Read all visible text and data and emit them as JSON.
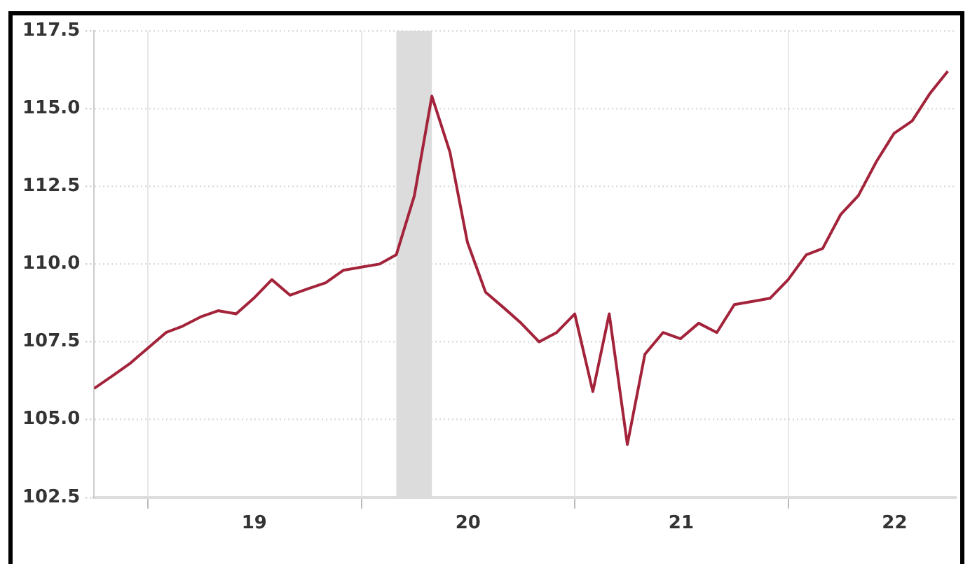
{
  "chart_data": {
    "type": "line",
    "x": [
      "2018-10",
      "2018-11",
      "2018-12",
      "2019-01",
      "2019-02",
      "2019-03",
      "2019-04",
      "2019-05",
      "2019-06",
      "2019-07",
      "2019-08",
      "2019-09",
      "2019-10",
      "2019-11",
      "2019-12",
      "2020-01",
      "2020-02",
      "2020-03",
      "2020-04",
      "2020-05",
      "2020-06",
      "2020-07",
      "2020-08",
      "2020-09",
      "2020-10",
      "2020-11",
      "2020-12",
      "2021-01",
      "2021-02",
      "2021-03",
      "2021-04",
      "2021-05",
      "2021-06",
      "2021-07",
      "2021-08",
      "2021-09",
      "2021-10",
      "2021-11",
      "2021-12",
      "2022-01",
      "2022-02",
      "2022-03",
      "2022-04",
      "2022-05",
      "2022-06",
      "2022-07",
      "2022-08",
      "2022-09",
      "2022-10"
    ],
    "series": [
      {
        "color": "#a3233a",
        "values": [
          106.0,
          106.4,
          106.8,
          107.3,
          107.8,
          108.0,
          108.3,
          108.5,
          108.4,
          108.9,
          109.5,
          109.0,
          109.2,
          109.4,
          109.8,
          109.9,
          110.0,
          110.3,
          112.2,
          115.4,
          113.6,
          110.7,
          109.1,
          108.6,
          108.1,
          107.5,
          107.8,
          108.4,
          105.9,
          108.4,
          104.2,
          107.1,
          107.8,
          107.6,
          108.1,
          107.8,
          108.7,
          108.8,
          108.9,
          109.5,
          110.3,
          110.5,
          111.6,
          112.2,
          113.3,
          114.2,
          114.6,
          115.5,
          116.2
        ]
      }
    ],
    "xlim": [
      "2018-10",
      "2022-10-15"
    ],
    "xticks": [
      {
        "value": "2019",
        "label": null
      },
      {
        "value": "2019-07-02",
        "label": "19"
      },
      {
        "value": "2020",
        "label": null
      },
      {
        "value": "2020-07-02",
        "label": "20"
      },
      {
        "value": "2021",
        "label": null
      },
      {
        "value": "2021-07-02",
        "label": "21"
      },
      {
        "value": "2022",
        "label": null
      },
      {
        "value": "2022-07-02",
        "label": "22"
      }
    ],
    "ylim": [
      102.5,
      117.5
    ],
    "yticks": [
      102.5,
      {
        "value": 105,
        "label": "105.0"
      },
      107.5,
      {
        "value": 110,
        "label": "110.0"
      },
      112.5,
      {
        "value": 115,
        "label": "115.0"
      },
      117.5
    ],
    "bands": [
      {
        "axis": "x",
        "from": "2020-03",
        "to": "2020-05",
        "color": "#dcdcdc"
      }
    ],
    "grid": true,
    "marker": "none",
    "line_style": "solid"
  }
}
